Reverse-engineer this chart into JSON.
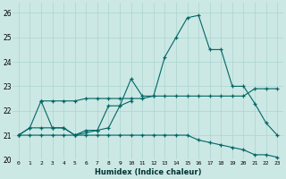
{
  "xlabel": "Humidex (Indice chaleur)",
  "background_color": "#cce8e4",
  "grid_color": "#aad4d0",
  "line_color": "#006666",
  "xlim": [
    -0.5,
    23.5
  ],
  "ylim": [
    20,
    26.4
  ],
  "xticks": [
    0,
    1,
    2,
    3,
    4,
    5,
    6,
    7,
    8,
    9,
    10,
    11,
    12,
    13,
    14,
    15,
    16,
    17,
    18,
    19,
    20,
    21,
    22,
    23
  ],
  "yticks": [
    20,
    21,
    22,
    23,
    24,
    25,
    26
  ],
  "series": [
    {
      "x": [
        0,
        1,
        2,
        3,
        4,
        5,
        6,
        7,
        8,
        9,
        10,
        11,
        12,
        13,
        14,
        15,
        16,
        17,
        18,
        19,
        20,
        21,
        22,
        23
      ],
      "y": [
        21.0,
        21.3,
        21.3,
        21.3,
        21.3,
        21.0,
        21.1,
        21.2,
        22.2,
        22.2,
        23.3,
        22.6,
        22.6,
        24.2,
        25.0,
        25.8,
        25.9,
        24.5,
        24.5,
        23.0,
        23.0,
        22.3,
        21.5,
        21.0
      ]
    },
    {
      "x": [
        2,
        3,
        4,
        5,
        6,
        7,
        8,
        9,
        10,
        11,
        12,
        13,
        14,
        15,
        16,
        17,
        18,
        19,
        20,
        21,
        22,
        23
      ],
      "y": [
        22.4,
        22.4,
        22.4,
        22.4,
        22.5,
        22.5,
        22.5,
        22.5,
        22.5,
        22.5,
        22.6,
        22.6,
        22.6,
        22.6,
        22.6,
        22.6,
        22.6,
        22.6,
        22.6,
        22.9,
        22.9,
        22.9
      ]
    },
    {
      "x": [
        0,
        1,
        2,
        3,
        4,
        5,
        6,
        7,
        8,
        9,
        10,
        11,
        12,
        13,
        14,
        15,
        16,
        17,
        18,
        19,
        20,
        21,
        22,
        23
      ],
      "y": [
        21.0,
        21.0,
        21.0,
        21.0,
        21.0,
        21.0,
        21.0,
        21.0,
        21.0,
        21.0,
        21.0,
        21.0,
        21.0,
        21.0,
        21.0,
        21.0,
        20.8,
        20.7,
        20.6,
        20.5,
        20.4,
        20.2,
        20.2,
        20.1
      ]
    },
    {
      "x": [
        0,
        1,
        2,
        3,
        4,
        5,
        6,
        7,
        8,
        9,
        10
      ],
      "y": [
        21.0,
        21.3,
        22.4,
        21.3,
        21.3,
        21.0,
        21.2,
        21.2,
        21.3,
        22.2,
        22.4
      ]
    }
  ]
}
